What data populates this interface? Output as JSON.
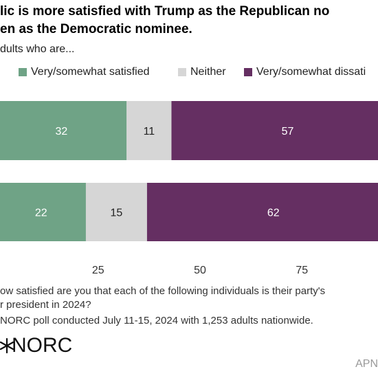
{
  "title_lines": [
    "lic is more satisfied with Trump as the Republican no",
    "en as the Democratic nominee."
  ],
  "subtitle": "dults who are...",
  "colors": {
    "satisfied": "#6fa386",
    "neither": "#d6d6d6",
    "dissatisfied": "#652f62"
  },
  "chart_data": {
    "type": "bar",
    "orientation": "horizontal",
    "stacked": true,
    "categories": [
      "",
      ""
    ],
    "series": [
      {
        "name": "Very/somewhat satisfied",
        "values": [
          32,
          22
        ]
      },
      {
        "name": "Neither",
        "values": [
          11,
          15
        ]
      },
      {
        "name": "Very/somewhat dissati",
        "values": [
          57,
          62
        ]
      }
    ],
    "xlim": [
      0,
      100
    ],
    "xticks": [
      25,
      50,
      75
    ],
    "legend_position": "top",
    "grid": false
  },
  "note_lines": [
    "ow satisfied are you that each of the following individuals is their party's",
    "r president in 2024?"
  ],
  "source": "NORC poll conducted July 11-15, 2024 with 1,253 adults nationwide.",
  "logo_text": "NORC",
  "credit": "APN"
}
